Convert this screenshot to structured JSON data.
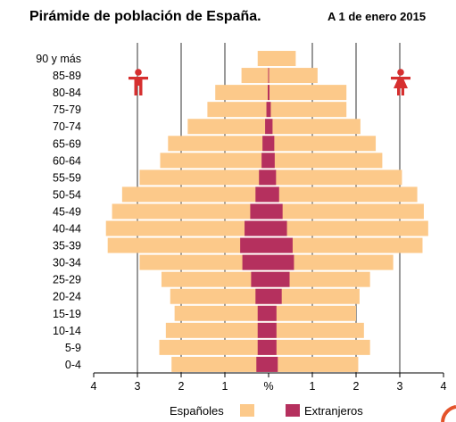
{
  "chart_data": {
    "type": "bar",
    "title": "Pirámide de población de España.",
    "subtitle": "A 1 de enero 2015",
    "left_icon": "male-figure-icon",
    "right_icon": "female-figure-icon",
    "categories": [
      "90 y más",
      "85-89",
      "80-84",
      "75-79",
      "70-74",
      "65-69",
      "60-64",
      "55-59",
      "50-54",
      "45-49",
      "40-44",
      "35-39",
      "30-34",
      "25-29",
      "20-24",
      "15-19",
      "10-14",
      "5-9",
      "0-4"
    ],
    "x_tick_labels": [
      "4",
      "3",
      "2",
      "1",
      "%",
      "1",
      "2",
      "3",
      "4"
    ],
    "xlim": [
      -4,
      4
    ],
    "grid": true,
    "legend_position": "bottom",
    "series": [
      {
        "name": "Españoles",
        "color": "#fcc98a",
        "male": [
          0.25,
          0.62,
          1.22,
          1.4,
          1.85,
          2.3,
          2.48,
          2.95,
          3.35,
          3.58,
          3.72,
          3.68,
          2.95,
          2.45,
          2.25,
          2.15,
          2.35,
          2.5,
          2.22
        ],
        "female": [
          0.62,
          1.12,
          1.78,
          1.78,
          2.1,
          2.45,
          2.6,
          3.05,
          3.4,
          3.55,
          3.65,
          3.52,
          2.85,
          2.32,
          2.08,
          2.0,
          2.18,
          2.32,
          2.05
        ]
      },
      {
        "name": "Extranjeros",
        "color": "#b5305e",
        "male": [
          0.0,
          0.01,
          0.02,
          0.05,
          0.08,
          0.14,
          0.16,
          0.22,
          0.3,
          0.42,
          0.55,
          0.65,
          0.6,
          0.4,
          0.3,
          0.25,
          0.25,
          0.25,
          0.28
        ],
        "female": [
          0.0,
          0.01,
          0.02,
          0.05,
          0.09,
          0.13,
          0.14,
          0.17,
          0.24,
          0.32,
          0.42,
          0.55,
          0.58,
          0.48,
          0.3,
          0.18,
          0.18,
          0.18,
          0.21
        ]
      }
    ]
  }
}
